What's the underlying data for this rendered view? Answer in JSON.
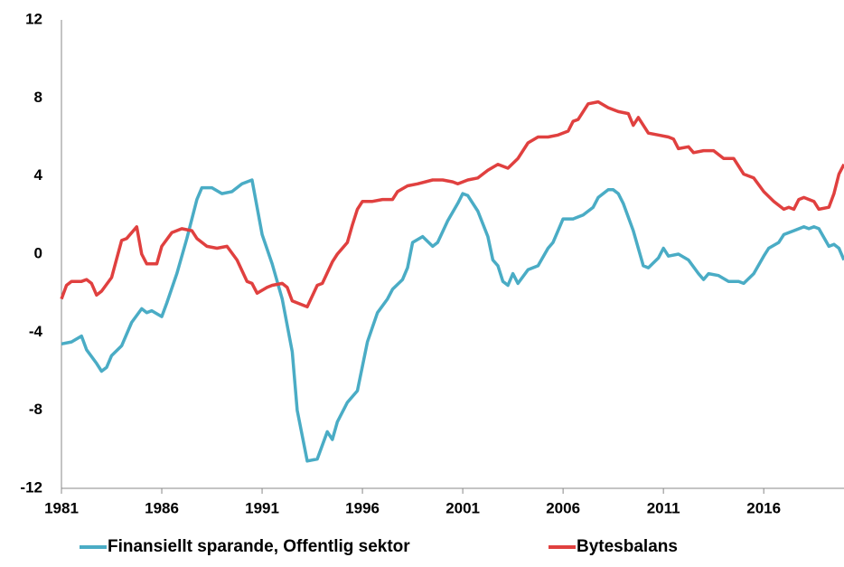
{
  "chart_data": {
    "type": "line",
    "xlim": [
      1981,
      2020
    ],
    "xticks": [
      1981,
      1986,
      1991,
      1996,
      2001,
      2006,
      2011,
      2016
    ],
    "ylim": [
      -12,
      12
    ],
    "yticks": [
      -12,
      -8,
      -4,
      0,
      4,
      8,
      12
    ],
    "grid": false,
    "series": [
      {
        "name": "Finansiellt sparande, Offentlig sektor",
        "color": "#4aacc5",
        "x": [
          1981.0,
          1981.5,
          1982.0,
          1982.25,
          1982.75,
          1983.0,
          1983.25,
          1983.5,
          1984.0,
          1984.5,
          1985.0,
          1985.25,
          1985.5,
          1986.0,
          1986.25,
          1986.75,
          1987.25,
          1987.75,
          1988.0,
          1988.5,
          1989.0,
          1989.5,
          1990.0,
          1990.5,
          1991.0,
          1991.5,
          1992.0,
          1992.5,
          1992.75,
          1993.25,
          1993.75,
          1994.25,
          1994.5,
          1994.75,
          1995.25,
          1995.75,
          1996.25,
          1996.75,
          1997.25,
          1997.5,
          1998.0,
          1998.25,
          1998.5,
          1999.0,
          1999.5,
          1999.75,
          2000.25,
          2000.75,
          2001.0,
          2001.25,
          2001.75,
          2002.25,
          2002.5,
          2002.75,
          2003.0,
          2003.25,
          2003.5,
          2003.75,
          2004.25,
          2004.75,
          2005.25,
          2005.5,
          2006.0,
          2006.5,
          2007.0,
          2007.5,
          2007.75,
          2008.25,
          2008.5,
          2008.75,
          2009.0,
          2009.5,
          2010.0,
          2010.25,
          2010.75,
          2011.0,
          2011.25,
          2011.75,
          2012.25,
          2012.75,
          2013.0,
          2013.25,
          2013.75,
          2014.25,
          2014.75,
          2015.0,
          2015.5,
          2016.0,
          2016.25,
          2016.75,
          2017.0,
          2017.5,
          2018.0,
          2018.25,
          2018.5,
          2018.75,
          2019.25,
          2019.5,
          2019.75,
          2020.0
        ],
        "values": [
          -4.6,
          -4.5,
          -4.2,
          -4.9,
          -5.6,
          -6.0,
          -5.8,
          -5.2,
          -4.7,
          -3.5,
          -2.8,
          -3.0,
          -2.9,
          -3.2,
          -2.5,
          -1.0,
          0.8,
          2.8,
          3.4,
          3.4,
          3.1,
          3.2,
          3.6,
          3.8,
          1.0,
          -0.5,
          -2.3,
          -5.0,
          -8.0,
          -10.6,
          -10.5,
          -9.1,
          -9.5,
          -8.6,
          -7.6,
          -7.0,
          -4.5,
          -3.0,
          -2.3,
          -1.8,
          -1.3,
          -0.7,
          0.6,
          0.9,
          0.4,
          0.6,
          1.7,
          2.6,
          3.1,
          3.0,
          2.2,
          0.9,
          -0.3,
          -0.6,
          -1.4,
          -1.6,
          -1.0,
          -1.5,
          -0.8,
          -0.6,
          0.3,
          0.6,
          1.8,
          1.8,
          2.0,
          2.4,
          2.9,
          3.3,
          3.3,
          3.1,
          2.6,
          1.2,
          -0.6,
          -0.7,
          -0.2,
          0.3,
          -0.1,
          0.0,
          -0.3,
          -1.0,
          -1.3,
          -1.0,
          -1.1,
          -1.4,
          -1.4,
          -1.5,
          -1.0,
          -0.1,
          0.3,
          0.6,
          1.0,
          1.2,
          1.4,
          1.3,
          1.4,
          1.3,
          0.4,
          0.5,
          0.3,
          -0.3
        ]
      },
      {
        "name": "Bytesbalans",
        "color": "#e0403f",
        "x": [
          1981.0,
          1981.25,
          1981.5,
          1982.0,
          1982.25,
          1982.5,
          1982.75,
          1983.0,
          1983.5,
          1984.0,
          1984.25,
          1984.75,
          1985.0,
          1985.25,
          1985.75,
          1986.0,
          1986.5,
          1987.0,
          1987.5,
          1987.75,
          1988.25,
          1988.75,
          1989.25,
          1989.75,
          1990.25,
          1990.5,
          1990.75,
          1991.25,
          1991.5,
          1992.0,
          1992.25,
          1992.5,
          1993.0,
          1993.25,
          1993.75,
          1994.0,
          1994.5,
          1994.75,
          1995.25,
          1995.5,
          1995.75,
          1996.0,
          1996.5,
          1997.0,
          1997.5,
          1997.75,
          1998.25,
          1998.75,
          1999.5,
          2000.0,
          2000.5,
          2000.75,
          2001.25,
          2001.75,
          2002.25,
          2002.75,
          2003.25,
          2003.75,
          2004.25,
          2004.75,
          2005.25,
          2005.75,
          2006.25,
          2006.5,
          2006.75,
          2007.25,
          2007.75,
          2008.25,
          2008.75,
          2009.25,
          2009.5,
          2009.75,
          2010.25,
          2010.75,
          2011.25,
          2011.5,
          2011.75,
          2012.25,
          2012.5,
          2013.0,
          2013.5,
          2014.0,
          2014.5,
          2015.0,
          2015.5,
          2016.0,
          2016.5,
          2017.0,
          2017.25,
          2017.5,
          2017.75,
          2018.0,
          2018.5,
          2018.75,
          2019.25,
          2019.5,
          2019.75,
          2020.0
        ],
        "values": [
          -2.3,
          -1.6,
          -1.4,
          -1.4,
          -1.3,
          -1.5,
          -2.1,
          -1.9,
          -1.2,
          0.7,
          0.8,
          1.4,
          0.0,
          -0.5,
          -0.5,
          0.4,
          1.1,
          1.3,
          1.2,
          0.8,
          0.4,
          0.3,
          0.4,
          -0.3,
          -1.4,
          -1.5,
          -2.0,
          -1.7,
          -1.6,
          -1.5,
          -1.7,
          -2.4,
          -2.6,
          -2.7,
          -1.6,
          -1.5,
          -0.4,
          0.0,
          0.6,
          1.5,
          2.3,
          2.7,
          2.7,
          2.8,
          2.8,
          3.2,
          3.5,
          3.6,
          3.8,
          3.8,
          3.7,
          3.6,
          3.8,
          3.9,
          4.3,
          4.6,
          4.4,
          4.9,
          5.7,
          6.0,
          6.0,
          6.1,
          6.3,
          6.8,
          6.9,
          7.7,
          7.8,
          7.5,
          7.3,
          7.2,
          6.6,
          7.0,
          6.2,
          6.1,
          6.0,
          5.9,
          5.4,
          5.5,
          5.2,
          5.3,
          5.3,
          4.9,
          4.9,
          4.1,
          3.9,
          3.2,
          2.7,
          2.3,
          2.4,
          2.3,
          2.8,
          2.9,
          2.7,
          2.3,
          2.4,
          3.1,
          4.1,
          4.6
        ]
      }
    ]
  }
}
